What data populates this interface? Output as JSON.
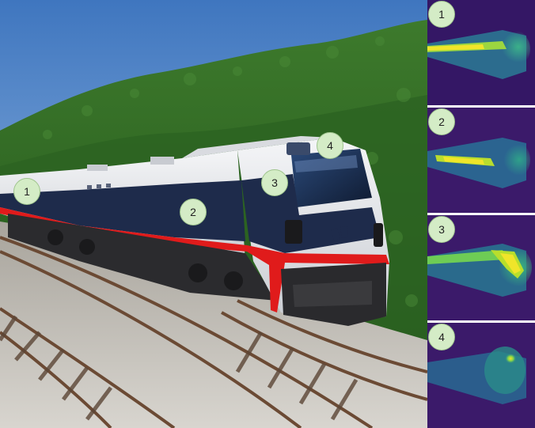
{
  "markers": [
    {
      "id": "1",
      "label": "1"
    },
    {
      "id": "2",
      "label": "2"
    },
    {
      "id": "3",
      "label": "3"
    },
    {
      "id": "4",
      "label": "4"
    }
  ],
  "panels": [
    {
      "label": "1"
    },
    {
      "label": "2"
    },
    {
      "label": "3"
    },
    {
      "label": "4"
    }
  ],
  "colors": {
    "sky": "#4f86c9",
    "hill": "#2f6a23",
    "train_body": "#e9ebee",
    "train_band": "#1e2b4b",
    "train_stripe": "#e01b1b",
    "badge_fill": "#d4ecc6",
    "heat_low": "#3b1a6a",
    "heat_mid": "#23a08a",
    "heat_high": "#f0e52a"
  }
}
